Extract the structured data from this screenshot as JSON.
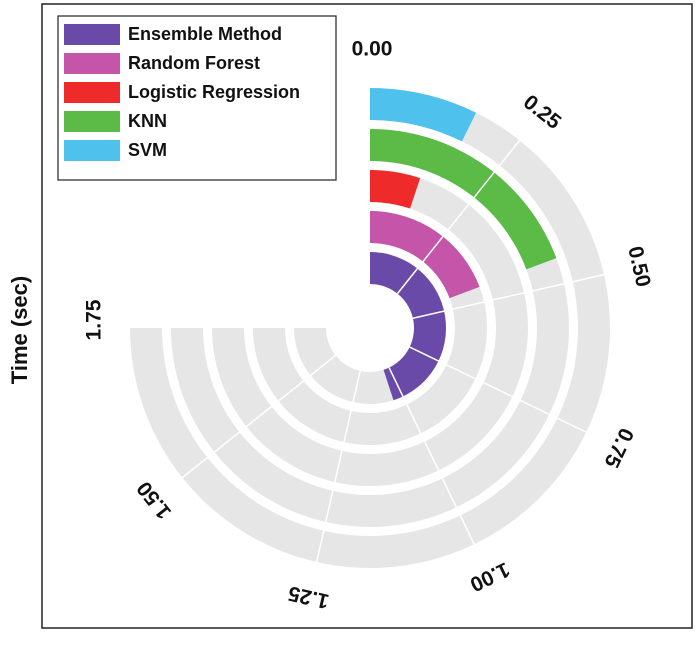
{
  "chart_data": {
    "type": "radial-bar",
    "ylabel": "Time (sec)",
    "axis": {
      "min": 0,
      "max": 1.75,
      "ticks": [
        {
          "value": 0.0,
          "label": "0.00"
        },
        {
          "value": 0.25,
          "label": "0.25"
        },
        {
          "value": 0.5,
          "label": "0.50"
        },
        {
          "value": 0.75,
          "label": "0.75"
        },
        {
          "value": 1.0,
          "label": "1.00"
        },
        {
          "value": 1.25,
          "label": "1.25"
        },
        {
          "value": 1.5,
          "label": "1.50"
        },
        {
          "value": 1.75,
          "label": "1.75"
        }
      ]
    },
    "grid": true,
    "legend_position": "top-left",
    "series": [
      {
        "name": "Ensemble Method",
        "value": 1.05,
        "color": "#6a4aa8"
      },
      {
        "name": "Random Forest",
        "value": 0.45,
        "color": "#c455a8"
      },
      {
        "name": "Logistic Regression",
        "value": 0.12,
        "color": "#ee2a2a"
      },
      {
        "name": "KNN",
        "value": 0.45,
        "color": "#5cba47"
      },
      {
        "name": "SVM",
        "value": 0.17,
        "color": "#4ec1ec"
      }
    ],
    "track_color": "#e6e6e6"
  }
}
